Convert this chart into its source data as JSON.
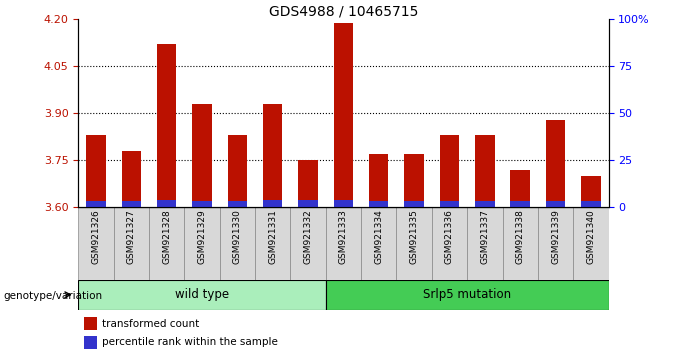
{
  "title": "GDS4988 / 10465715",
  "samples": [
    "GSM921326",
    "GSM921327",
    "GSM921328",
    "GSM921329",
    "GSM921330",
    "GSM921331",
    "GSM921332",
    "GSM921333",
    "GSM921334",
    "GSM921335",
    "GSM921336",
    "GSM921337",
    "GSM921338",
    "GSM921339",
    "GSM921340"
  ],
  "transformed_count": [
    3.83,
    3.78,
    4.12,
    3.93,
    3.83,
    3.93,
    3.75,
    4.19,
    3.77,
    3.77,
    3.83,
    3.83,
    3.72,
    3.88,
    3.7
  ],
  "percentile_rank_pct": [
    3,
    3,
    4,
    3,
    3,
    4,
    4,
    4,
    3,
    3,
    3,
    3,
    3,
    3,
    3
  ],
  "ylim_left": [
    3.6,
    4.2
  ],
  "ylim_right": [
    0,
    100
  ],
  "yticks_left": [
    3.6,
    3.75,
    3.9,
    4.05,
    4.2
  ],
  "yticks_right": [
    0,
    25,
    50,
    75,
    100
  ],
  "ytick_labels_right": [
    "0",
    "25",
    "50",
    "75",
    "100%"
  ],
  "grid_values": [
    3.75,
    3.9,
    4.05
  ],
  "bar_color_red": "#bb1100",
  "bar_color_blue": "#3333cc",
  "bar_base": 3.6,
  "n_wild_type": 7,
  "wild_type_label": "wild type",
  "mutation_label": "Srlp5 mutation",
  "genotype_label": "genotype/variation",
  "legend_red": "transformed count",
  "legend_blue": "percentile rank within the sample",
  "wild_type_color": "#aaeebb",
  "mutation_color": "#44cc55",
  "bar_width": 0.55,
  "sample_box_color": "#d8d8d8",
  "sample_box_edge": "#888888"
}
